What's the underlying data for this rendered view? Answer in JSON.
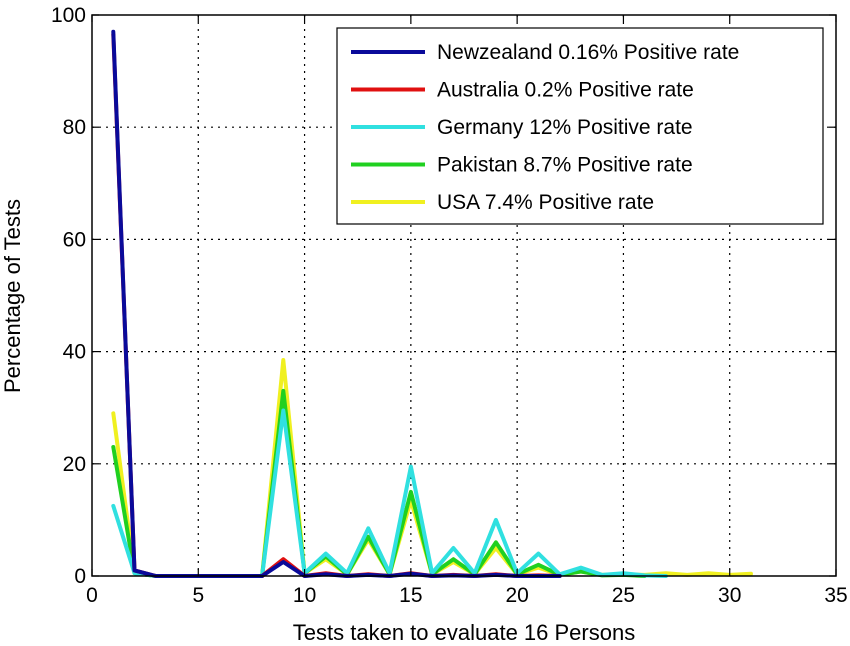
{
  "chart_data": {
    "type": "line",
    "xlabel": "Tests taken to evaluate 16 Persons",
    "ylabel": "Percentage of Tests",
    "xlim": [
      0,
      35
    ],
    "ylim": [
      0,
      100
    ],
    "xticks": [
      0,
      5,
      10,
      15,
      20,
      25,
      30,
      35
    ],
    "yticks": [
      0,
      20,
      40,
      60,
      80,
      100
    ],
    "grid": true,
    "legend_position": "top-right",
    "series": [
      {
        "name": "Newzealand 0.16% Positive rate",
        "color": "#0a0a9a",
        "x": [
          1,
          2,
          3,
          4,
          5,
          6,
          7,
          8,
          9,
          10,
          11,
          12,
          13,
          14,
          15,
          16,
          17,
          18,
          19,
          20,
          21,
          22
        ],
        "y": [
          97,
          1,
          0,
          0,
          0,
          0,
          0,
          0,
          2.5,
          0,
          0.3,
          0,
          0.2,
          0,
          0.4,
          0,
          0.1,
          0,
          0.2,
          0,
          0,
          0
        ]
      },
      {
        "name": "Australia 0.2% Positive rate",
        "color": "#e01010",
        "x": [
          1,
          2,
          3,
          4,
          5,
          6,
          7,
          8,
          9,
          10,
          11,
          12,
          13,
          14,
          15,
          16,
          17,
          18,
          19,
          20,
          21,
          22
        ],
        "y": [
          96.5,
          1,
          0,
          0,
          0,
          0,
          0,
          0,
          3,
          0,
          0.5,
          0,
          0.3,
          0,
          0.5,
          0,
          0.2,
          0,
          0.3,
          0,
          0.1,
          0
        ]
      },
      {
        "name": "Germany 12% Positive rate",
        "color": "#30e0e0",
        "x": [
          1,
          2,
          3,
          4,
          5,
          6,
          7,
          8,
          9,
          10,
          11,
          12,
          13,
          14,
          15,
          16,
          17,
          18,
          19,
          20,
          21,
          22,
          23,
          24,
          25,
          26,
          27
        ],
        "y": [
          12.5,
          0.5,
          0,
          0,
          0,
          0,
          0,
          0,
          29.5,
          0.5,
          4,
          0.5,
          8.5,
          0.5,
          19.5,
          0.5,
          5,
          0.5,
          10,
          0.5,
          4,
          0.3,
          1.5,
          0.2,
          0.5,
          0.1,
          0
        ]
      },
      {
        "name": "Pakistan 8.7% Positive rate",
        "color": "#20d020",
        "x": [
          1,
          2,
          3,
          4,
          5,
          6,
          7,
          8,
          9,
          10,
          11,
          12,
          13,
          14,
          15,
          16,
          17,
          18,
          19,
          20,
          21,
          22,
          23,
          24,
          25,
          26
        ],
        "y": [
          23,
          0.5,
          0,
          0,
          0,
          0,
          0,
          0,
          33,
          0.5,
          3.5,
          0.3,
          7,
          0.3,
          15,
          0.3,
          3,
          0.3,
          6,
          0.3,
          2,
          0.2,
          0.8,
          0.1,
          0.2,
          0
        ]
      },
      {
        "name": "USA 7.4% Positive rate",
        "color": "#f0f020",
        "x": [
          1,
          2,
          3,
          4,
          5,
          6,
          7,
          8,
          9,
          10,
          11,
          12,
          13,
          14,
          15,
          16,
          17,
          18,
          19,
          20,
          21,
          22,
          23,
          24,
          25,
          26,
          27,
          28,
          29,
          30,
          31
        ],
        "y": [
          29,
          0.5,
          0,
          0,
          0,
          0,
          0,
          0,
          38.5,
          0.5,
          3,
          0.3,
          6.5,
          0.3,
          13.5,
          0.3,
          2.5,
          0.3,
          5,
          0.3,
          1.5,
          0.2,
          0.8,
          0.2,
          0.3,
          0.2,
          0.5,
          0.2,
          0.5,
          0.2,
          0.4
        ]
      }
    ]
  }
}
